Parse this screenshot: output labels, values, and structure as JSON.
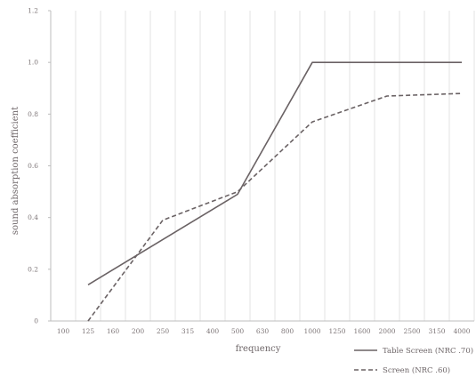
{
  "chart_data": {
    "type": "line",
    "xlabel": "frequency",
    "ylabel": "sound absorption coefficient",
    "categories": [
      "100",
      "125",
      "160",
      "200",
      "250",
      "315",
      "400",
      "500",
      "630",
      "800",
      "1000",
      "1250",
      "1600",
      "2000",
      "2500",
      "3150",
      "4000"
    ],
    "ylim": [
      0,
      1.2
    ],
    "yticks": [
      "0",
      "0.2",
      "0.4",
      "0.6",
      "0.8",
      "1.0",
      "1.2"
    ],
    "grid": "vertical",
    "legend_position": "bottom-right",
    "series": [
      {
        "name": "Table Screen (NRC .70)",
        "style": "solid",
        "color": "#6a6264",
        "points": [
          {
            "x": "125",
            "y": 0.14
          },
          {
            "x": "500",
            "y": 0.49
          },
          {
            "x": "1000",
            "y": 1.0
          },
          {
            "x": "4000",
            "y": 1.0
          }
        ]
      },
      {
        "name": "Screen (NRC .60)",
        "style": "dashed",
        "color": "#6a6264",
        "points": [
          {
            "x": "125",
            "y": 0.0
          },
          {
            "x": "250",
            "y": 0.39
          },
          {
            "x": "500",
            "y": 0.5
          },
          {
            "x": "1000",
            "y": 0.77
          },
          {
            "x": "2000",
            "y": 0.87
          },
          {
            "x": "4000",
            "y": 0.88
          }
        ]
      }
    ]
  }
}
